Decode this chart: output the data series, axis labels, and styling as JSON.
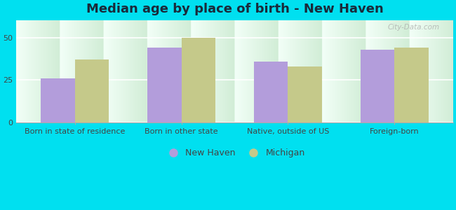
{
  "title": "Median age by place of birth - New Haven",
  "categories": [
    "Born in state of residence",
    "Born in other state",
    "Native, outside of US",
    "Foreign-born"
  ],
  "new_haven_values": [
    26,
    44,
    36,
    43
  ],
  "michigan_values": [
    37,
    50,
    33,
    44
  ],
  "new_haven_color": "#b39ddb",
  "michigan_color": "#c5c98a",
  "ylim": [
    0,
    60
  ],
  "yticks": [
    0,
    25,
    50
  ],
  "legend_labels": [
    "New Haven",
    "Michigan"
  ],
  "background_outer": "#00e0f0",
  "background_inner_top": "#f0fff4",
  "background_inner_bottom": "#c8e6c9",
  "watermark": "City-Data.com",
  "bar_width": 0.32,
  "title_fontsize": 13,
  "tick_fontsize": 8,
  "legend_fontsize": 9,
  "title_color": "#1a2a3a"
}
